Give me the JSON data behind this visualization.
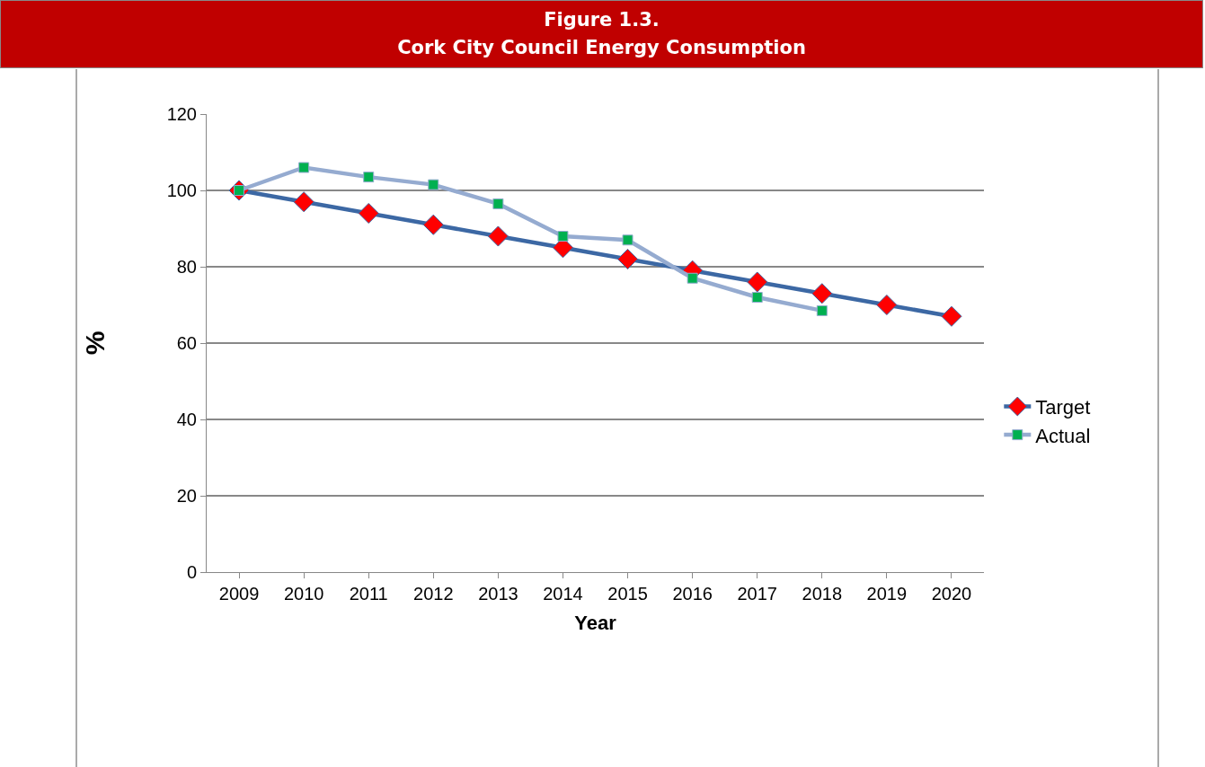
{
  "chart_data": {
    "type": "line",
    "title": "Figure 1.3.",
    "subtitle": "Cork City Council Energy Consumption",
    "xlabel": "Year",
    "ylabel": "%",
    "categories": [
      "2009",
      "2010",
      "2011",
      "2012",
      "2013",
      "2014",
      "2015",
      "2016",
      "2017",
      "2018",
      "2019",
      "2020"
    ],
    "series": [
      {
        "name": "Target",
        "color": "#3c68a4",
        "marker": "diamond",
        "colors": [
          "#ff0000",
          "#ff0000",
          "#ff0000",
          "#ff0000",
          "#ff0000",
          "#ff0000",
          "#ff0000",
          "#ff0000",
          "#ff0000",
          "#ff0000",
          "#ff0000",
          "#ff0000"
        ],
        "values": [
          100,
          97,
          94,
          91,
          88,
          85,
          82,
          79,
          76,
          73,
          70,
          67
        ]
      },
      {
        "name": "Actual",
        "color": "#95abd0",
        "marker": "square",
        "colors": [
          "#00b050",
          "#00b050",
          "#00b050",
          "#00b050",
          "#00b050",
          "#00b050",
          "#00b050",
          "#00b050",
          "#00b050",
          "#00b050",
          "#00b050",
          "#00b050"
        ],
        "values": [
          100,
          106,
          103.5,
          101.5,
          96.5,
          88,
          87,
          77,
          72,
          68.5,
          null,
          null
        ]
      }
    ],
    "ylim": [
      0,
      120
    ],
    "yticks": [
      0,
      20,
      40,
      60,
      80,
      100,
      120
    ],
    "grid": "y",
    "legend": "right",
    "line_style": "solid"
  }
}
